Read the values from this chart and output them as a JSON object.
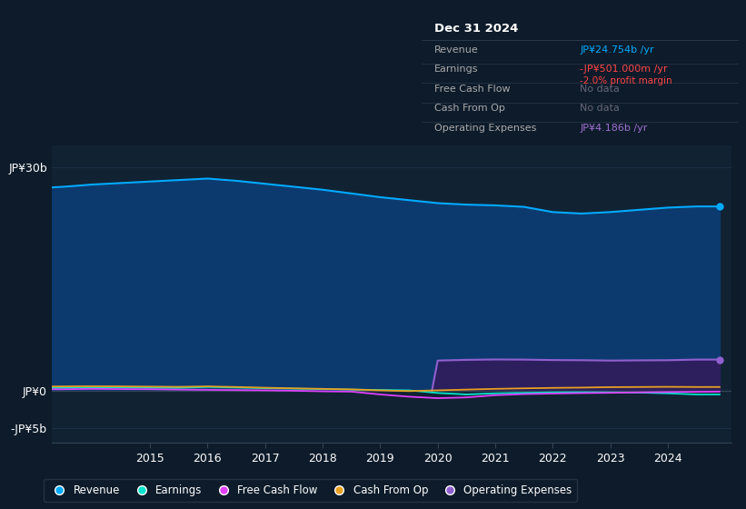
{
  "bg_color": "#0d1b2a",
  "plot_bg_color": "#112233",
  "grid_color": "#1a3045",
  "years": [
    2013.0,
    2013.5,
    2014.0,
    2014.5,
    2015.0,
    2015.5,
    2016.0,
    2016.5,
    2017.0,
    2017.5,
    2018.0,
    2018.5,
    2019.0,
    2019.5,
    2020.0,
    2020.5,
    2021.0,
    2021.5,
    2022.0,
    2022.5,
    2023.0,
    2023.5,
    2024.0,
    2024.5,
    2024.9
  ],
  "revenue": [
    27.2,
    27.4,
    27.7,
    27.9,
    28.1,
    28.3,
    28.5,
    28.2,
    27.8,
    27.4,
    27.0,
    26.5,
    26.0,
    25.6,
    25.2,
    25.0,
    24.9,
    24.7,
    24.0,
    23.8,
    24.0,
    24.3,
    24.6,
    24.754,
    24.754
  ],
  "earnings": [
    0.35,
    0.38,
    0.42,
    0.45,
    0.4,
    0.38,
    0.5,
    0.42,
    0.35,
    0.28,
    0.22,
    0.15,
    0.1,
    0.05,
    -0.3,
    -0.5,
    -0.35,
    -0.28,
    -0.22,
    -0.2,
    -0.22,
    -0.25,
    -0.35,
    -0.501,
    -0.501
  ],
  "free_cash_flow": [
    0.18,
    0.2,
    0.25,
    0.22,
    0.2,
    0.15,
    0.12,
    0.08,
    0.05,
    0.0,
    -0.08,
    -0.12,
    -0.5,
    -0.8,
    -1.0,
    -0.9,
    -0.6,
    -0.45,
    -0.38,
    -0.32,
    -0.28,
    -0.22,
    -0.18,
    -0.15,
    -0.12
  ],
  "cash_from_op": [
    0.55,
    0.58,
    0.6,
    0.58,
    0.55,
    0.52,
    0.58,
    0.5,
    0.4,
    0.32,
    0.25,
    0.18,
    0.05,
    -0.05,
    0.05,
    0.15,
    0.25,
    0.32,
    0.38,
    0.42,
    0.48,
    0.5,
    0.52,
    0.5,
    0.5
  ],
  "op_expenses_x": [
    2019.9,
    2020.0,
    2020.5,
    2021.0,
    2021.5,
    2022.0,
    2022.5,
    2023.0,
    2023.5,
    2024.0,
    2024.5,
    2024.9
  ],
  "op_expenses": [
    0.0,
    4.05,
    4.15,
    4.2,
    4.18,
    4.12,
    4.1,
    4.05,
    4.08,
    4.1,
    4.186,
    4.186
  ],
  "revenue_color": "#00aaff",
  "earnings_color": "#00e5cc",
  "free_cash_flow_color": "#e040fb",
  "cash_from_op_color": "#e8a020",
  "op_expenses_color": "#9060d0",
  "op_expenses_fill_color": "#2d1f5e",
  "revenue_fill_color": "#0d3a6e",
  "ylim_min": -7,
  "ylim_max": 33,
  "ytick_vals": [
    30,
    0,
    -5
  ],
  "ytick_labels": [
    "JP¥30b",
    "JP¥0",
    "-JP¥5b"
  ],
  "xtick_years": [
    2015,
    2016,
    2017,
    2018,
    2019,
    2020,
    2021,
    2022,
    2023,
    2024
  ],
  "info_box": {
    "title": "Dec 31 2024",
    "rows": [
      {
        "label": "Revenue",
        "value": "JP¥24.754b /yr",
        "value_color": "#00aaff"
      },
      {
        "label": "Earnings",
        "value": "-JP¥501.000m /yr",
        "value_color": "#ff4444",
        "sub_value": "-2.0% profit margin",
        "sub_color": "#ff4444"
      },
      {
        "label": "Free Cash Flow",
        "value": "No data",
        "value_color": "#666677"
      },
      {
        "label": "Cash From Op",
        "value": "No data",
        "value_color": "#666677"
      },
      {
        "label": "Operating Expenses",
        "value": "JP¥4.186b /yr",
        "value_color": "#a070d0"
      }
    ]
  },
  "legend": [
    {
      "label": "Revenue",
      "color": "#00aaff"
    },
    {
      "label": "Earnings",
      "color": "#00e5cc"
    },
    {
      "label": "Free Cash Flow",
      "color": "#e040fb"
    },
    {
      "label": "Cash From Op",
      "color": "#e8a020"
    },
    {
      "label": "Operating Expenses",
      "color": "#9060d0"
    }
  ]
}
